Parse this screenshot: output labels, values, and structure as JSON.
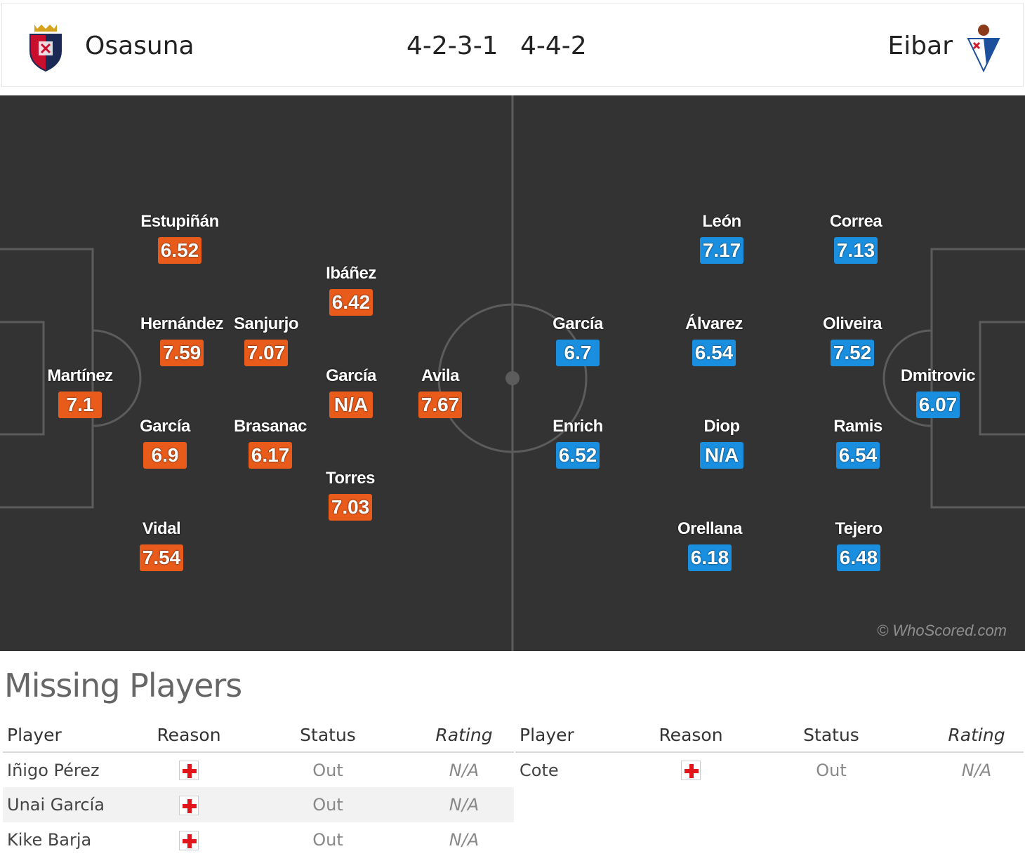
{
  "header": {
    "home_team": "Osasuna",
    "away_team": "Eibar",
    "home_formation": "4-2-3-1",
    "away_formation": "4-4-2"
  },
  "colors": {
    "home_rating": "#e85b1b",
    "away_rating": "#1a8fe0",
    "pitch": "#333333"
  },
  "pitch": {
    "watermark": "© WhoScored.com",
    "home_players": [
      {
        "name": "Martínez",
        "rating": "7.1"
      },
      {
        "name": "Estupiñán",
        "rating": "6.52"
      },
      {
        "name": "Hernández",
        "rating": "7.59"
      },
      {
        "name": "García",
        "rating": "6.9"
      },
      {
        "name": "Vidal",
        "rating": "7.54"
      },
      {
        "name": "Sanjurjo",
        "rating": "7.07"
      },
      {
        "name": "Brasanac",
        "rating": "6.17"
      },
      {
        "name": "Ibáñez",
        "rating": "6.42"
      },
      {
        "name": "García",
        "rating": "N/A"
      },
      {
        "name": "Torres",
        "rating": "7.03"
      },
      {
        "name": "Avila",
        "rating": "7.67"
      }
    ],
    "away_players": [
      {
        "name": "García",
        "rating": "6.7"
      },
      {
        "name": "Enrich",
        "rating": "6.52"
      },
      {
        "name": "León",
        "rating": "7.17"
      },
      {
        "name": "Álvarez",
        "rating": "6.54"
      },
      {
        "name": "Diop",
        "rating": "N/A"
      },
      {
        "name": "Orellana",
        "rating": "6.18"
      },
      {
        "name": "Correa",
        "rating": "7.13"
      },
      {
        "name": "Oliveira",
        "rating": "7.52"
      },
      {
        "name": "Ramis",
        "rating": "6.54"
      },
      {
        "name": "Tejero",
        "rating": "6.48"
      },
      {
        "name": "Dmitrovic",
        "rating": "6.07"
      }
    ]
  },
  "missing": {
    "title": "Missing Players",
    "columns": [
      "Player",
      "Reason",
      "Status",
      "Rating"
    ],
    "home": [
      {
        "player": "Iñigo Pérez",
        "reason": "injury-icon",
        "status": "Out",
        "rating": "N/A"
      },
      {
        "player": "Unai García",
        "reason": "injury-icon",
        "status": "Out",
        "rating": "N/A"
      },
      {
        "player": "Kike Barja",
        "reason": "injury-icon",
        "status": "Out",
        "rating": "N/A"
      }
    ],
    "away": [
      {
        "player": "Cote",
        "reason": "injury-icon",
        "status": "Out",
        "rating": "N/A"
      }
    ]
  }
}
